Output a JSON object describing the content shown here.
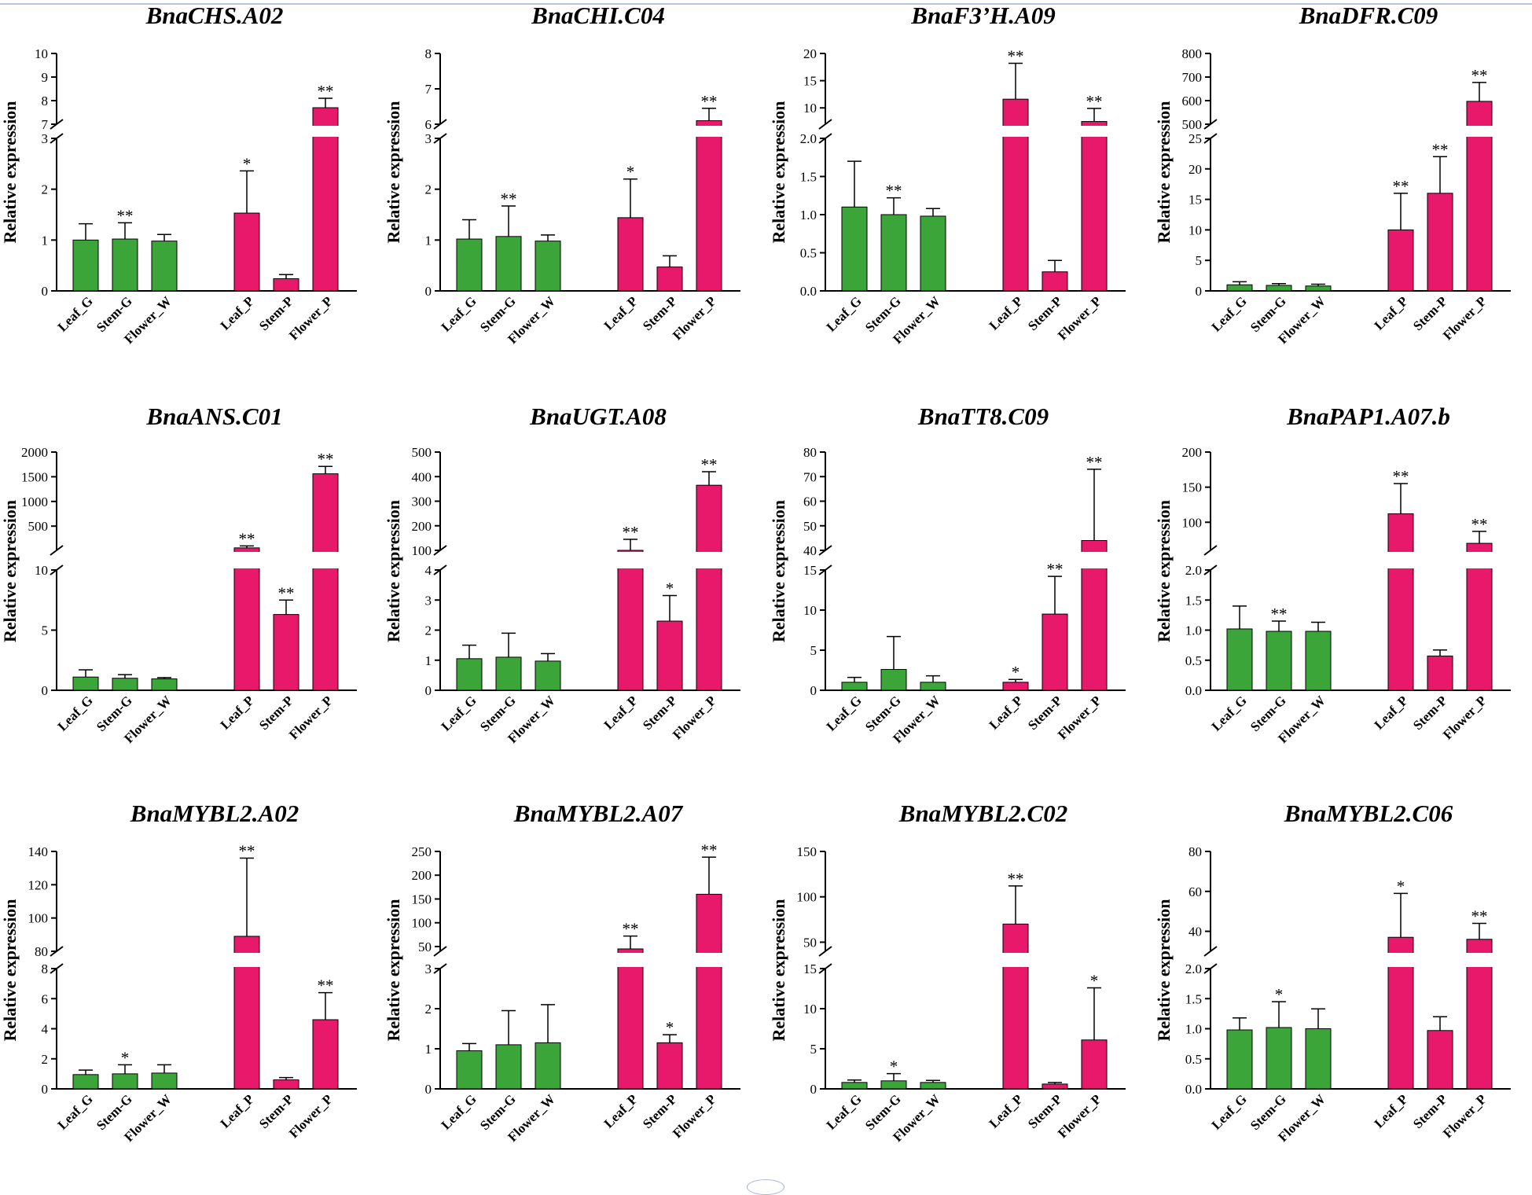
{
  "colors": {
    "group_g": "#3ba539",
    "group_p": "#e8196a",
    "axis": "#000000",
    "break_gap": "#ffffff"
  },
  "chart_data": [
    {
      "type": "bar",
      "title": "BnaCHS.A02",
      "ylabel": "Relative expression",
      "categories": [
        "Leaf_G",
        "Stem-G",
        "Flower_W",
        "Leaf_P",
        "Stem-P",
        "Flower_P"
      ],
      "values": [
        1.0,
        1.02,
        0.98,
        1.53,
        0.24,
        7.7
      ],
      "errors": [
        0.32,
        0.32,
        0.13,
        0.83,
        0.08,
        0.4
      ],
      "significance": [
        "",
        "**",
        "",
        "*",
        "",
        "**"
      ],
      "broken_axis": true,
      "lower_segment": {
        "ylim": [
          0,
          3
        ],
        "ticks": [
          "0",
          "1",
          "2",
          "3"
        ]
      },
      "upper_segment": {
        "ylim": [
          7,
          10
        ],
        "ticks": [
          "7",
          "8",
          "9",
          "10"
        ]
      }
    },
    {
      "type": "bar",
      "title": "BnaCHI.C04",
      "ylabel": "Relative expression",
      "categories": [
        "Leaf_G",
        "Stem-G",
        "Flower_W",
        "Leaf_P",
        "Stem-P",
        "Flower_P"
      ],
      "values": [
        1.02,
        1.07,
        0.98,
        1.44,
        0.47,
        6.1
      ],
      "errors": [
        0.38,
        0.6,
        0.12,
        0.76,
        0.22,
        0.35
      ],
      "significance": [
        "",
        "**",
        "",
        "*",
        "",
        "**"
      ],
      "broken_axis": true,
      "lower_segment": {
        "ylim": [
          0,
          3
        ],
        "ticks": [
          "0",
          "1",
          "2",
          "3"
        ]
      },
      "upper_segment": {
        "ylim": [
          6,
          8
        ],
        "ticks": [
          "6",
          "7",
          "8"
        ]
      }
    },
    {
      "type": "bar",
      "title": "BnaF3’H.A09",
      "ylabel": "Relative expression",
      "categories": [
        "Leaf_G",
        "Stem-G",
        "Flower_W",
        "Leaf_P",
        "Stem-P",
        "Flower_P"
      ],
      "values": [
        1.1,
        1.0,
        0.98,
        11.6,
        0.25,
        7.5
      ],
      "errors": [
        0.6,
        0.22,
        0.1,
        6.6,
        0.15,
        2.4
      ],
      "significance": [
        "",
        "**",
        "",
        "**",
        "",
        "**"
      ],
      "broken_axis": true,
      "lower_segment": {
        "ylim": [
          0,
          2
        ],
        "ticks": [
          "0.0",
          "0.5",
          "1.0",
          "1.5",
          "2.0"
        ]
      },
      "upper_segment": {
        "ylim": [
          7,
          20
        ],
        "ticks": [
          "10",
          "15",
          "20"
        ]
      }
    },
    {
      "type": "bar",
      "title": "BnaDFR.C09",
      "ylabel": "Relative expression",
      "categories": [
        "Leaf_G",
        "Stem-G",
        "Flower_W",
        "Leaf_P",
        "Stem-P",
        "Flower_P"
      ],
      "values": [
        1.0,
        0.9,
        0.8,
        10.0,
        16.0,
        597
      ],
      "errors": [
        0.5,
        0.3,
        0.3,
        6.0,
        6.0,
        80
      ],
      "significance": [
        "",
        "",
        "",
        "**",
        "**",
        "**"
      ],
      "broken_axis": true,
      "lower_segment": {
        "ylim": [
          0,
          25
        ],
        "ticks": [
          "0",
          "5",
          "10",
          "15",
          "20",
          "25"
        ]
      },
      "upper_segment": {
        "ylim": [
          500,
          800
        ],
        "ticks": [
          "500",
          "600",
          "700",
          "800"
        ]
      }
    },
    {
      "type": "bar",
      "title": "BnaANS.C01",
      "ylabel": "Relative expression",
      "categories": [
        "Leaf_G",
        "Stem-G",
        "Flower_W",
        "Leaf_P",
        "Stem-P",
        "Flower_P"
      ],
      "values": [
        1.1,
        1.0,
        0.95,
        60,
        6.3,
        1560
      ],
      "errors": [
        0.6,
        0.3,
        0.1,
        40,
        1.2,
        150
      ],
      "significance": [
        "",
        "",
        "",
        "**",
        "**",
        "**"
      ],
      "broken_axis": true,
      "lower_segment": {
        "ylim": [
          0,
          10
        ],
        "ticks": [
          "0",
          "5",
          "10"
        ]
      },
      "upper_segment": {
        "ylim": [
          10,
          2000
        ],
        "ticks": [
          "500",
          "1000",
          "1500",
          "2000"
        ]
      }
    },
    {
      "type": "bar",
      "title": "BnaUGT.A08",
      "ylabel": "Relative expression",
      "categories": [
        "Leaf_G",
        "Stem-G",
        "Flower_W",
        "Leaf_P",
        "Stem-P",
        "Flower_P"
      ],
      "values": [
        1.05,
        1.1,
        0.97,
        100,
        2.3,
        365
      ],
      "errors": [
        0.45,
        0.8,
        0.25,
        45,
        0.85,
        55
      ],
      "significance": [
        "",
        "",
        "",
        "**",
        "*",
        "**"
      ],
      "broken_axis": true,
      "lower_segment": {
        "ylim": [
          0,
          4
        ],
        "ticks": [
          "0",
          "1",
          "2",
          "3",
          "4"
        ]
      },
      "upper_segment": {
        "ylim": [
          100,
          500
        ],
        "ticks": [
          "100",
          "200",
          "300",
          "400",
          "500"
        ]
      }
    },
    {
      "type": "bar",
      "title": "BnaTT8.C09",
      "ylabel": "Relative expression",
      "categories": [
        "Leaf_G",
        "Stem-G",
        "Flower_W",
        "Leaf_P",
        "Stem-P",
        "Flower_P"
      ],
      "values": [
        1.0,
        2.6,
        1.0,
        1.0,
        9.5,
        44
      ],
      "errors": [
        0.6,
        4.1,
        0.8,
        0.35,
        4.7,
        29
      ],
      "significance": [
        "",
        "",
        "",
        "*",
        "**",
        "**"
      ],
      "broken_axis": true,
      "lower_segment": {
        "ylim": [
          0,
          15
        ],
        "ticks": [
          "0",
          "5",
          "10",
          "15"
        ]
      },
      "upper_segment": {
        "ylim": [
          40,
          80
        ],
        "ticks": [
          "40",
          "50",
          "60",
          "70",
          "80"
        ]
      }
    },
    {
      "type": "bar",
      "title": "BnaPAP1.A07.b",
      "ylabel": "Relative expression",
      "categories": [
        "Leaf_G",
        "Stem-G",
        "Flower_W",
        "Leaf_P",
        "Stem-P",
        "Flower_P"
      ],
      "values": [
        1.02,
        0.98,
        0.98,
        112,
        0.57,
        70
      ],
      "errors": [
        0.38,
        0.17,
        0.15,
        43,
        0.1,
        17
      ],
      "significance": [
        "",
        "**",
        "",
        "**",
        "",
        "**"
      ],
      "broken_axis": true,
      "lower_segment": {
        "ylim": [
          0,
          2
        ],
        "ticks": [
          "0.0",
          "0.5",
          "1.0",
          "1.5",
          "2.0"
        ]
      },
      "upper_segment": {
        "ylim": [
          60,
          200
        ],
        "ticks": [
          "100",
          "150",
          "200"
        ]
      }
    },
    {
      "type": "bar",
      "title": "BnaMYBL2.A02",
      "ylabel": "Relative expression",
      "categories": [
        "Leaf_G",
        "Stem-G",
        "Flower_W",
        "Leaf_P",
        "Stem-P",
        "Flower_P"
      ],
      "values": [
        0.95,
        1.0,
        1.05,
        89,
        0.6,
        4.6
      ],
      "errors": [
        0.3,
        0.6,
        0.55,
        47,
        0.15,
        1.8
      ],
      "significance": [
        "",
        "*",
        "",
        "**",
        "",
        "**"
      ],
      "broken_axis": true,
      "lower_segment": {
        "ylim": [
          0,
          8
        ],
        "ticks": [
          "0",
          "2",
          "4",
          "6",
          "8"
        ]
      },
      "upper_segment": {
        "ylim": [
          80,
          140
        ],
        "ticks": [
          "80",
          "100",
          "120",
          "140"
        ]
      }
    },
    {
      "type": "bar",
      "title": "BnaMYBL2.A07",
      "ylabel": "Relative expression",
      "categories": [
        "Leaf_G",
        "Stem-G",
        "Flower_W",
        "Leaf_P",
        "Stem-P",
        "Flower_P"
      ],
      "values": [
        0.95,
        1.1,
        1.15,
        45,
        1.15,
        160
      ],
      "errors": [
        0.18,
        0.85,
        0.95,
        27,
        0.2,
        78
      ],
      "significance": [
        "",
        "",
        "",
        "**",
        "*",
        "**"
      ],
      "broken_axis": true,
      "lower_segment": {
        "ylim": [
          0,
          3
        ],
        "ticks": [
          "0",
          "1",
          "2",
          "3"
        ]
      },
      "upper_segment": {
        "ylim": [
          40,
          250
        ],
        "ticks": [
          "50",
          "100",
          "150",
          "200",
          "250"
        ]
      }
    },
    {
      "type": "bar",
      "title": "BnaMYBL2.C02",
      "ylabel": "Relative expression",
      "categories": [
        "Leaf_G",
        "Stem-G",
        "Flower_W",
        "Leaf_P",
        "Stem-P",
        "Flower_P"
      ],
      "values": [
        0.8,
        1.0,
        0.8,
        70,
        0.6,
        6.1
      ],
      "errors": [
        0.3,
        0.9,
        0.25,
        42,
        0.2,
        6.5
      ],
      "significance": [
        "",
        "*",
        "",
        "**",
        "",
        "*"
      ],
      "broken_axis": true,
      "lower_segment": {
        "ylim": [
          0,
          15
        ],
        "ticks": [
          "0",
          "5",
          "10",
          "15"
        ]
      },
      "upper_segment": {
        "ylim": [
          40,
          150
        ],
        "ticks": [
          "50",
          "100",
          "150"
        ]
      }
    },
    {
      "type": "bar",
      "title": "BnaMYBL2.C06",
      "ylabel": "Relative expression",
      "categories": [
        "Leaf_G",
        "Stem-G",
        "Flower_W",
        "Leaf_P",
        "Stem-P",
        "Flower_P"
      ],
      "values": [
        0.98,
        1.02,
        1.0,
        37,
        0.97,
        36
      ],
      "errors": [
        0.2,
        0.43,
        0.33,
        22,
        0.23,
        8
      ],
      "significance": [
        "",
        "*",
        "",
        "*",
        "",
        "**"
      ],
      "broken_axis": true,
      "lower_segment": {
        "ylim": [
          0,
          2
        ],
        "ticks": [
          "0.0",
          "0.5",
          "1.0",
          "1.5",
          "2.0"
        ]
      },
      "upper_segment": {
        "ylim": [
          30,
          80
        ],
        "ticks": [
          "40",
          "60",
          "80"
        ]
      }
    }
  ]
}
